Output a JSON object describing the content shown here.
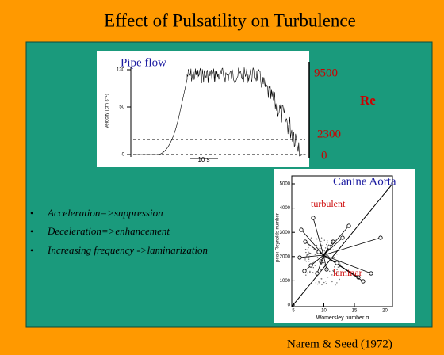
{
  "header": {
    "title": "Effect of Pulsatility on Turbulence"
  },
  "pipe_flow": {
    "title": "Pipe flow",
    "y_axis_label": "velocity (cm s⁻¹)",
    "y_ticks": [
      "130",
      "50",
      "0"
    ],
    "time_scale": "10 s",
    "re_labels": [
      "9500",
      "2300",
      "0"
    ],
    "re_title": "Re"
  },
  "canine_aorta": {
    "title": "Canine Aorta",
    "y_axis_label": "peak Reynolds number",
    "x_axis_label": "Womersley number α",
    "y_ticks": [
      "5000",
      "4000",
      "3000",
      "2000",
      "1000",
      "0"
    ],
    "x_ticks": [
      "5",
      "10",
      "15",
      "20"
    ],
    "regions": [
      "turbulent",
      "laminar"
    ]
  },
  "bullets": [
    "Acceleration=>suppression",
    "Deceleration=>enhancement",
    "Increasing frequency ->laminarization"
  ],
  "citation": "Narem & Seed (1972)"
}
